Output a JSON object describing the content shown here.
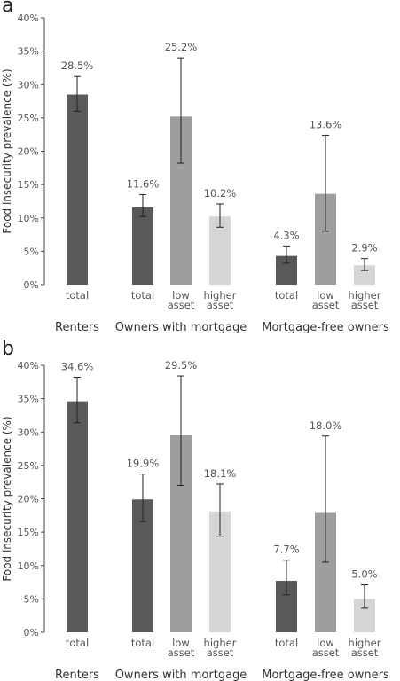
{
  "chart_data": [
    {
      "panel": "a",
      "type": "bar",
      "ylabel": "Food insecurity prevalence (%)",
      "ylim": [
        0,
        40
      ],
      "yticks": [
        "0%",
        "5%",
        "10%",
        "15%",
        "20%",
        "25%",
        "30%",
        "35%",
        "40%"
      ],
      "groups": [
        "Renters",
        "Owners with mortgage",
        "Mortgage-free owners"
      ],
      "bars": [
        {
          "group": "Renters",
          "label": "total",
          "value": 28.5,
          "label_text": "28.5%",
          "ci": [
            26.0,
            31.2
          ],
          "color": "#595959"
        },
        {
          "group": "Owners with mortgage",
          "label": "total",
          "value": 11.6,
          "label_text": "11.6%",
          "ci": [
            10.2,
            13.5
          ],
          "color": "#595959"
        },
        {
          "group": "Owners with mortgage",
          "label": "low asset",
          "value": 25.2,
          "label_text": "25.2%",
          "ci": [
            18.2,
            34.0
          ],
          "color": "#9e9e9e"
        },
        {
          "group": "Owners with mortgage",
          "label": "higher asset",
          "value": 10.2,
          "label_text": "10.2%",
          "ci": [
            8.6,
            12.1
          ],
          "color": "#d6d6d6"
        },
        {
          "group": "Mortgage-free owners",
          "label": "total",
          "value": 4.3,
          "label_text": "4.3%",
          "ci": [
            3.2,
            5.8
          ],
          "color": "#595959"
        },
        {
          "group": "Mortgage-free owners",
          "label": "low asset",
          "value": 13.6,
          "label_text": "13.6%",
          "ci": [
            8.0,
            22.4
          ],
          "color": "#9e9e9e"
        },
        {
          "group": "Mortgage-free owners",
          "label": "higher asset",
          "value": 2.9,
          "label_text": "2.9%",
          "ci": [
            2.1,
            3.9
          ],
          "color": "#d6d6d6"
        }
      ]
    },
    {
      "panel": "b",
      "type": "bar",
      "ylabel": "Food insecurity prevalence (%)",
      "ylim": [
        0,
        40
      ],
      "yticks": [
        "0%",
        "5%",
        "10%",
        "15%",
        "20%",
        "25%",
        "30%",
        "35%",
        "40%"
      ],
      "groups": [
        "Renters",
        "Owners with mortgage",
        "Mortgage-free owners"
      ],
      "bars": [
        {
          "group": "Renters",
          "label": "total",
          "value": 34.6,
          "label_text": "34.6%",
          "ci": [
            31.4,
            38.2
          ],
          "color": "#595959"
        },
        {
          "group": "Owners with mortgage",
          "label": "total",
          "value": 19.9,
          "label_text": "19.9%",
          "ci": [
            16.6,
            23.7
          ],
          "color": "#595959"
        },
        {
          "group": "Owners with mortgage",
          "label": "low asset",
          "value": 29.5,
          "label_text": "29.5%",
          "ci": [
            22.0,
            38.4
          ],
          "color": "#9e9e9e"
        },
        {
          "group": "Owners with mortgage",
          "label": "higher asset",
          "value": 18.1,
          "label_text": "18.1%",
          "ci": [
            14.4,
            22.2
          ],
          "color": "#d6d6d6"
        },
        {
          "group": "Mortgage-free owners",
          "label": "total",
          "value": 7.7,
          "label_text": "7.7%",
          "ci": [
            5.6,
            10.8
          ],
          "color": "#595959"
        },
        {
          "group": "Mortgage-free owners",
          "label": "low asset",
          "value": 18.0,
          "label_text": "18.0%",
          "ci": [
            10.5,
            29.4
          ],
          "color": "#9e9e9e"
        },
        {
          "group": "Mortgage-free owners",
          "label": "higher asset",
          "value": 5.0,
          "label_text": "5.0%",
          "ci": [
            3.6,
            7.1
          ],
          "color": "#d6d6d6"
        }
      ]
    }
  ]
}
